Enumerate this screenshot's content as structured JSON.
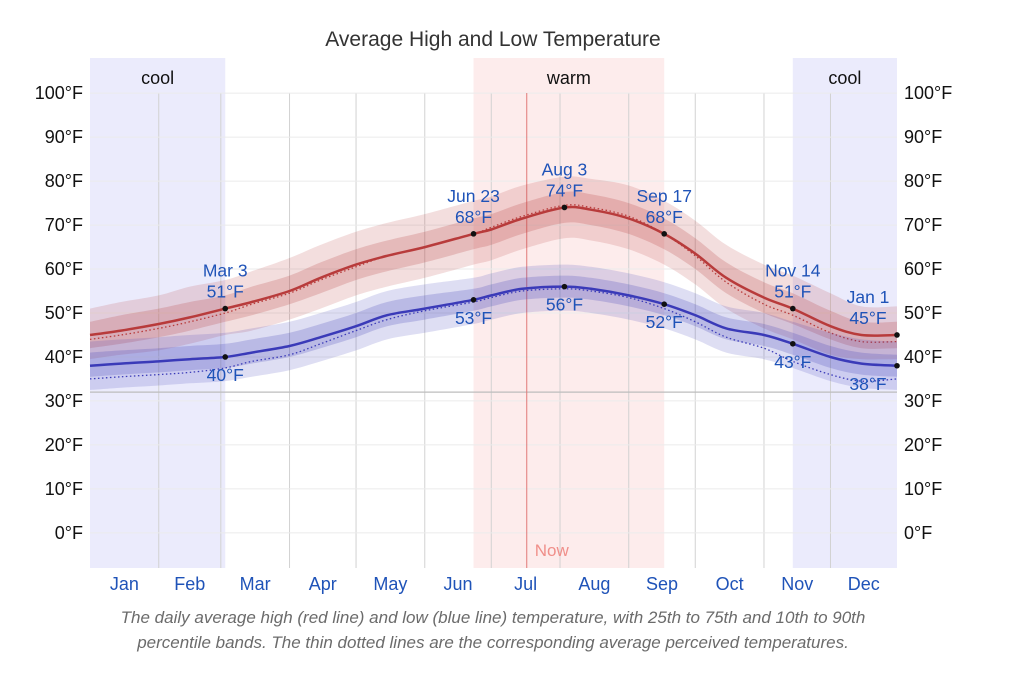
{
  "chart_data": {
    "type": "line",
    "title": "Average High and Low Temperature",
    "y_unit": "°F",
    "ylim": [
      -8,
      108
    ],
    "y_ticks": [
      0,
      10,
      20,
      30,
      40,
      50,
      60,
      70,
      80,
      90,
      100
    ],
    "y_tick_labels": [
      "0°F",
      "10°F",
      "20°F",
      "30°F",
      "40°F",
      "50°F",
      "60°F",
      "70°F",
      "80°F",
      "90°F",
      "100°F"
    ],
    "x_ticks": [
      "Jan",
      "Feb",
      "Mar",
      "Apr",
      "May",
      "Jun",
      "Jul",
      "Aug",
      "Sep",
      "Oct",
      "Nov",
      "Dec"
    ],
    "legend": "none",
    "grid": true,
    "freezing_line": 32,
    "now_label": "Now",
    "now_date": "Jul 17",
    "seasons": [
      {
        "label": "cool",
        "start": "Jan 1",
        "end": "Mar 3",
        "color": "#ebebfc"
      },
      {
        "label": "warm",
        "start": "Jun 23",
        "end": "Sep 17",
        "color": "#fdecec"
      },
      {
        "label": "cool",
        "start": "Nov 14",
        "end": "Dec 31",
        "color": "#ebebfc"
      }
    ],
    "series": [
      {
        "name": "high",
        "color": "#b83b3b",
        "dates": [
          "Jan 1",
          "Jan 15",
          "Feb 1",
          "Feb 15",
          "Mar 3",
          "Mar 15",
          "Apr 1",
          "Apr 15",
          "May 1",
          "May 15",
          "Jun 1",
          "Jun 23",
          "Jul 1",
          "Jul 15",
          "Aug 3",
          "Aug 15",
          "Sep 1",
          "Sep 17",
          "Oct 1",
          "Oct 15",
          "Nov 1",
          "Nov 14",
          "Dec 1",
          "Dec 15",
          "Dec 31"
        ],
        "values": [
          45,
          46,
          47.5,
          49,
          51,
          52.5,
          55,
          58,
          61,
          63,
          65,
          68,
          69,
          71.5,
          74,
          73.5,
          71.5,
          68,
          63.5,
          58,
          53.5,
          51,
          47,
          45,
          45
        ],
        "p25_75": [
          [
            42,
            48
          ],
          [
            43,
            49.5
          ],
          [
            44.5,
            51
          ],
          [
            46,
            52.5
          ],
          [
            48,
            54
          ],
          [
            49.5,
            56
          ],
          [
            52,
            58.5
          ],
          [
            54.5,
            61.5
          ],
          [
            57.5,
            64.5
          ],
          [
            59.5,
            66.5
          ],
          [
            61.5,
            68.5
          ],
          [
            64.5,
            71.5
          ],
          [
            65.5,
            72.5
          ],
          [
            68,
            75
          ],
          [
            70.5,
            77.5
          ],
          [
            70,
            77
          ],
          [
            68,
            75
          ],
          [
            64.5,
            71.5
          ],
          [
            60,
            67
          ],
          [
            54.5,
            61.5
          ],
          [
            50,
            57
          ],
          [
            47.5,
            54.5
          ],
          [
            44,
            50.5
          ],
          [
            42,
            48
          ],
          [
            42,
            48
          ]
        ],
        "p10_90": [
          [
            39.5,
            51
          ],
          [
            40.5,
            52.5
          ],
          [
            41.5,
            54
          ],
          [
            43,
            56
          ],
          [
            45,
            57.5
          ],
          [
            46,
            59.5
          ],
          [
            48.5,
            62.5
          ],
          [
            51,
            65.5
          ],
          [
            54,
            68.5
          ],
          [
            56,
            70.5
          ],
          [
            58,
            72.5
          ],
          [
            61,
            75.5
          ],
          [
            62,
            76.5
          ],
          [
            64.5,
            79
          ],
          [
            67,
            81
          ],
          [
            66.5,
            80.5
          ],
          [
            64.5,
            79
          ],
          [
            61,
            75.5
          ],
          [
            56.5,
            71
          ],
          [
            51,
            65.5
          ],
          [
            46.5,
            61
          ],
          [
            44,
            58.5
          ],
          [
            40.5,
            54.5
          ],
          [
            39.5,
            51.5
          ],
          [
            39.5,
            51.5
          ]
        ],
        "perceived": [
          44,
          45,
          46.5,
          48,
          50,
          52,
          54.5,
          57.5,
          60.5,
          63,
          65,
          68,
          69.5,
          72,
          74.5,
          74,
          72,
          68,
          63,
          57,
          52,
          49.5,
          45.5,
          43.5,
          43.5
        ],
        "callouts": [
          {
            "date": "Mar 3",
            "value_label": "51°F"
          },
          {
            "date": "Jun 23",
            "value_label": "68°F"
          },
          {
            "date": "Aug 3",
            "value_label": "74°F"
          },
          {
            "date": "Sep 17",
            "value_label": "68°F"
          },
          {
            "date": "Nov 14",
            "value_label": "51°F"
          },
          {
            "date": "Jan 1",
            "value_label": "45°F"
          }
        ]
      },
      {
        "name": "low",
        "color": "#3a3ab8",
        "dates": [
          "Jan 1",
          "Jan 15",
          "Feb 1",
          "Feb 15",
          "Mar 3",
          "Mar 15",
          "Apr 1",
          "Apr 15",
          "May 1",
          "May 15",
          "Jun 1",
          "Jun 23",
          "Jul 1",
          "Jul 15",
          "Aug 3",
          "Aug 15",
          "Sep 1",
          "Sep 17",
          "Oct 1",
          "Oct 15",
          "Nov 1",
          "Nov 14",
          "Dec 1",
          "Dec 15",
          "Dec 31"
        ],
        "values": [
          38,
          38.5,
          39,
          39.5,
          40,
          41,
          42.5,
          44.5,
          47,
          49.5,
          51,
          53,
          54,
          55.5,
          56,
          55.5,
          54,
          52,
          49.5,
          46.5,
          45,
          43,
          40,
          38.5,
          38
        ],
        "p25_75": [
          [
            35.5,
            41
          ],
          [
            36,
            41.5
          ],
          [
            36.5,
            42
          ],
          [
            37,
            42.5
          ],
          [
            37.5,
            43
          ],
          [
            38.5,
            44
          ],
          [
            40,
            45.5
          ],
          [
            42,
            47.5
          ],
          [
            44.5,
            50
          ],
          [
            47,
            52.5
          ],
          [
            48.5,
            54
          ],
          [
            50.5,
            55.5
          ],
          [
            51.5,
            56.5
          ],
          [
            53,
            58
          ],
          [
            53.5,
            58.5
          ],
          [
            53,
            58
          ],
          [
            51.5,
            56.5
          ],
          [
            49.5,
            54.5
          ],
          [
            47,
            52
          ],
          [
            44,
            49
          ],
          [
            42.5,
            47.5
          ],
          [
            40.5,
            45.5
          ],
          [
            37.5,
            42.5
          ],
          [
            36,
            41
          ],
          [
            35.5,
            40.5
          ]
        ],
        "p10_90": [
          [
            32.5,
            43.5
          ],
          [
            33,
            44
          ],
          [
            33.5,
            44.5
          ],
          [
            34,
            45
          ],
          [
            34.5,
            45.5
          ],
          [
            35.5,
            46.5
          ],
          [
            37,
            48
          ],
          [
            39,
            50
          ],
          [
            41.5,
            52.5
          ],
          [
            44,
            55
          ],
          [
            45.5,
            56.5
          ],
          [
            47.5,
            58
          ],
          [
            48.5,
            59
          ],
          [
            50,
            60.5
          ],
          [
            50.5,
            61
          ],
          [
            50,
            60.5
          ],
          [
            48.5,
            59
          ],
          [
            46.5,
            57
          ],
          [
            44,
            54.5
          ],
          [
            41,
            51.5
          ],
          [
            39.5,
            50
          ],
          [
            37.5,
            48
          ],
          [
            34.5,
            45.5
          ],
          [
            33,
            44
          ],
          [
            32.5,
            43.5
          ]
        ],
        "perceived": [
          35,
          35.5,
          36,
          36.5,
          37.5,
          39,
          40.5,
          43,
          46,
          48.5,
          50.5,
          52.5,
          53.5,
          55,
          55.5,
          55,
          53.5,
          51,
          48,
          44.5,
          42,
          39,
          36,
          34.5,
          35
        ],
        "callouts": [
          {
            "date": "Mar 3",
            "value_label": "40°F"
          },
          {
            "date": "Jun 23",
            "value_label": "53°F"
          },
          {
            "date": "Aug 3",
            "value_label": "56°F"
          },
          {
            "date": "Sep 17",
            "value_label": "52°F"
          },
          {
            "date": "Nov 14",
            "value_label": "43°F"
          },
          {
            "date": "Jan 1",
            "value_label": "38°F"
          }
        ]
      }
    ]
  },
  "caption": {
    "line1": "The daily average high (red line) and low (blue line) temperature, with 25th to 75th and 10th to 90th",
    "line2": "percentile bands. The thin dotted lines are the corresponding average perceived temperatures."
  }
}
